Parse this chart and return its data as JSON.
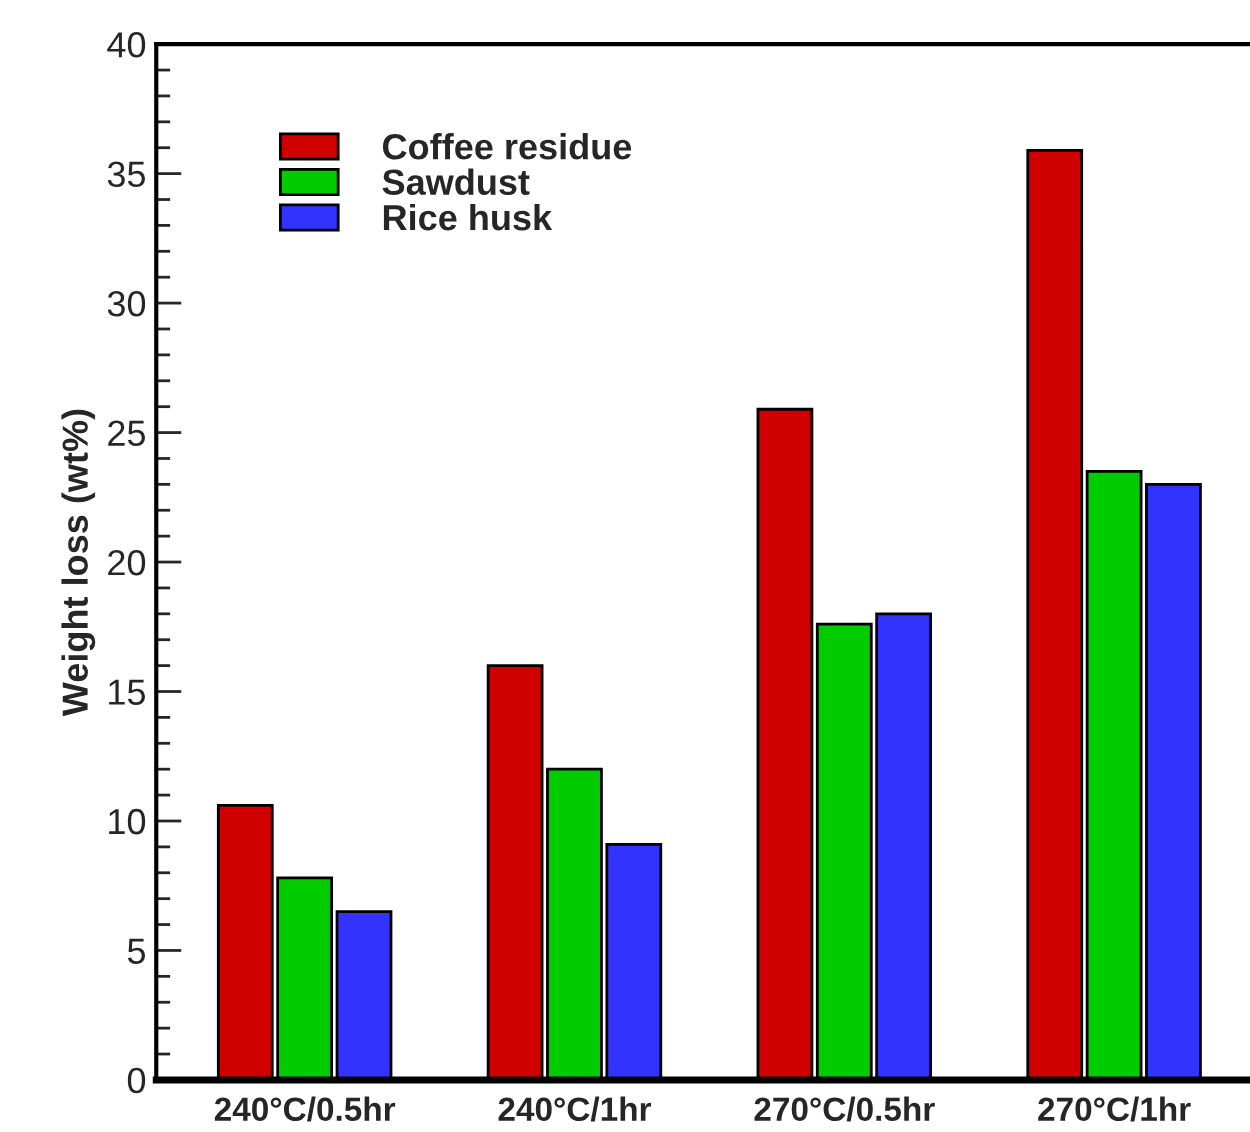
{
  "chart_data": {
    "type": "bar",
    "ylabel": "Weight loss (wt%)",
    "categories": [
      "240°C/0.5hr",
      "240°C/1hr",
      "270°C/0.5hr",
      "270°C/1hr"
    ],
    "series": [
      {
        "name": "Coffee residue",
        "color": "#d00000",
        "values": [
          10.6,
          16.0,
          25.9,
          35.9
        ]
      },
      {
        "name": "Sawdust",
        "color": "#00cc00",
        "values": [
          7.8,
          12.0,
          17.6,
          23.5
        ]
      },
      {
        "name": "Rice husk",
        "color": "#3333ff",
        "values": [
          6.5,
          9.1,
          18.0,
          23.0
        ]
      }
    ],
    "ylim": [
      0,
      40
    ],
    "yticks": [
      0,
      5,
      10,
      15,
      20,
      25,
      30,
      35,
      40
    ],
    "grid": false,
    "legend": "top left"
  }
}
